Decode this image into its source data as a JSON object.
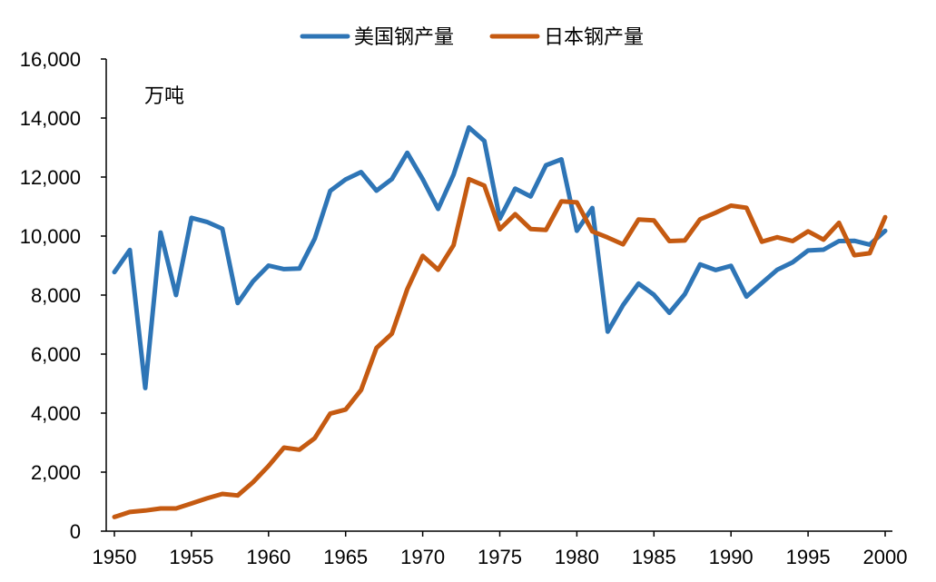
{
  "chart_data": {
    "type": "line",
    "title": "",
    "xlabel": "",
    "ylabel": "",
    "unit_label": "万吨",
    "xlim": [
      1950,
      2000
    ],
    "ylim": [
      0,
      16000
    ],
    "x_ticks": [
      1950,
      1955,
      1960,
      1965,
      1970,
      1975,
      1980,
      1985,
      1990,
      1995,
      2000
    ],
    "y_ticks": [
      0,
      2000,
      4000,
      6000,
      8000,
      10000,
      12000,
      14000,
      16000
    ],
    "y_tick_labels": [
      "0",
      "2,000",
      "4,000",
      "6,000",
      "8,000",
      "10,000",
      "12,000",
      "14,000",
      "16,000"
    ],
    "legend_position": "top-center",
    "grid": false,
    "x": [
      1950,
      1951,
      1952,
      1953,
      1954,
      1955,
      1956,
      1957,
      1958,
      1959,
      1960,
      1961,
      1962,
      1963,
      1964,
      1965,
      1966,
      1967,
      1968,
      1969,
      1970,
      1971,
      1972,
      1973,
      1974,
      1975,
      1976,
      1977,
      1978,
      1979,
      1980,
      1981,
      1982,
      1983,
      1984,
      1985,
      1986,
      1987,
      1988,
      1989,
      1990,
      1991,
      1992,
      1993,
      1994,
      1995,
      1996,
      1997,
      1998,
      1999,
      2000
    ],
    "series": [
      {
        "name": "美国钢产量",
        "color": "#2E75B6",
        "values": [
          8780,
          9530,
          4850,
          10120,
          8000,
          10620,
          10480,
          10250,
          7730,
          8470,
          9000,
          8880,
          8900,
          9910,
          11530,
          11920,
          12170,
          11540,
          11930,
          12820,
          11930,
          10920,
          12080,
          13680,
          13220,
          10590,
          11610,
          11340,
          12400,
          12600,
          10180,
          10950,
          6760,
          7660,
          8390,
          8010,
          7400,
          8030,
          9040,
          8850,
          8990,
          7950,
          8410,
          8860,
          9110,
          9510,
          9540,
          9830,
          9840,
          9710,
          10180
        ]
      },
      {
        "name": "日本钢产量",
        "color": "#C55A11",
        "values": [
          480,
          650,
          700,
          770,
          770,
          940,
          1110,
          1260,
          1210,
          1660,
          2210,
          2830,
          2760,
          3150,
          3980,
          4120,
          4780,
          6210,
          6690,
          8200,
          9330,
          8860,
          9690,
          11930,
          11710,
          10230,
          10740,
          10240,
          10210,
          11180,
          11140,
          10160,
          9950,
          9720,
          10560,
          10530,
          9830,
          9850,
          10570,
          10790,
          11030,
          10960,
          9810,
          9960,
          9830,
          10160,
          9880,
          10450,
          9350,
          9420,
          10640
        ]
      }
    ]
  }
}
